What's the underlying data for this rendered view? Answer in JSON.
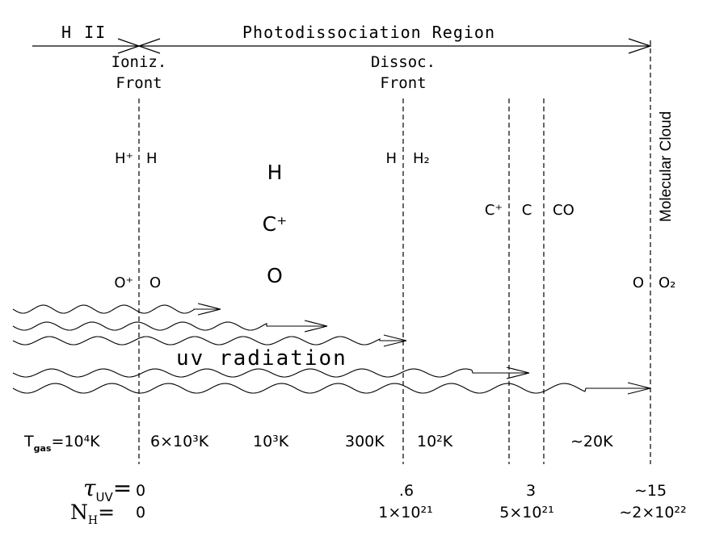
{
  "header": {
    "hii_label": "H II",
    "pdr_label": "Photodissociation Region"
  },
  "fronts": {
    "ioniz": [
      "Ioniz.",
      "Front"
    ],
    "dissoc": [
      "Dissoc.",
      "Front"
    ],
    "cloud": "Molecular Cloud"
  },
  "species": {
    "h_plus": "H⁺",
    "h_left": "H",
    "h_mid": "H",
    "h2": "H₂",
    "h_big": "H",
    "c_plus_big": "C⁺",
    "o_big": "O",
    "c_plus_right": "C⁺",
    "c_right": "C",
    "co": "CO",
    "o_plus": "O⁺",
    "o_left": "O",
    "o_right": "O",
    "o2": "O₂"
  },
  "radiation_label": "uv radiation",
  "temperatures": {
    "t_gas_symbol": "T",
    "t_gas_sub": "gas",
    "t1": "=10⁴K",
    "t2": "6×10³K",
    "t3": "10³K",
    "t4": "300K",
    "t5": "10²K",
    "t6": "∼20K"
  },
  "tau_row": {
    "symbol": "τ",
    "sub": "UV",
    "eq": "=",
    "values": [
      "0",
      ".6",
      "3",
      "∼15"
    ]
  },
  "nh_row": {
    "symbol": "N",
    "sub": "H",
    "eq": "=",
    "values": [
      "0",
      "1×10²¹",
      "5×10²¹",
      "∼2×10²²"
    ]
  }
}
